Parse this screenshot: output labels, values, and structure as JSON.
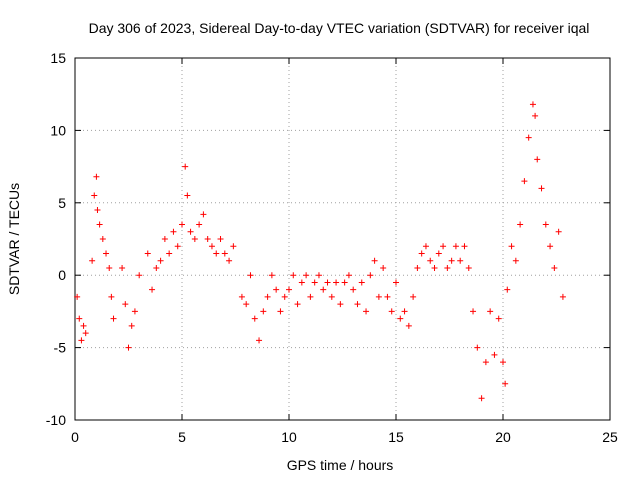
{
  "chart_data": {
    "type": "scatter",
    "title": "Day 306 of 2023, Sidereal Day-to-day VTEC variation (SDTVAR) for receiver iqal",
    "xlabel": "GPS time / hours",
    "ylabel": "SDTVAR / TECUs",
    "xlim": [
      0,
      25
    ],
    "ylim": [
      -10,
      15
    ],
    "xticks": [
      0,
      5,
      10,
      15,
      20,
      25
    ],
    "yticks": [
      -10,
      -5,
      0,
      5,
      10,
      15
    ],
    "xtick_labels": [
      "0",
      "5",
      "10",
      "15",
      "20",
      "25"
    ],
    "ytick_labels": [
      "-10",
      "-5",
      "0",
      "5",
      "10",
      "15"
    ],
    "grid": true,
    "marker": "+",
    "series": [
      {
        "name": "SDTVAR",
        "color": "#ff0000",
        "x": [
          0.1,
          0.2,
          0.3,
          0.4,
          0.5,
          0.8,
          0.9,
          1.0,
          1.05,
          1.15,
          1.3,
          1.45,
          1.6,
          1.7,
          1.8,
          2.2,
          2.35,
          2.5,
          2.65,
          2.8,
          3.0,
          3.4,
          3.6,
          3.8,
          4.0,
          4.2,
          4.4,
          4.6,
          4.8,
          5.0,
          5.15,
          5.25,
          5.4,
          5.6,
          5.8,
          6.0,
          6.2,
          6.4,
          6.6,
          6.8,
          7.0,
          7.2,
          7.4,
          7.8,
          8.0,
          8.2,
          8.4,
          8.6,
          8.8,
          9.0,
          9.2,
          9.4,
          9.6,
          9.8,
          10.0,
          10.2,
          10.4,
          10.6,
          10.8,
          11.0,
          11.2,
          11.4,
          11.6,
          11.8,
          12.0,
          12.2,
          12.4,
          12.6,
          12.8,
          13.0,
          13.2,
          13.4,
          13.6,
          13.8,
          14.0,
          14.2,
          14.4,
          14.6,
          14.8,
          15.0,
          15.2,
          15.4,
          15.6,
          15.8,
          16.0,
          16.2,
          16.4,
          16.6,
          16.8,
          17.0,
          17.2,
          17.4,
          17.6,
          17.8,
          18.0,
          18.2,
          18.4,
          18.6,
          18.8,
          19.0,
          19.2,
          19.4,
          19.6,
          19.8,
          20.0,
          20.1,
          20.2,
          20.4,
          20.6,
          20.8,
          21.0,
          21.2,
          21.4,
          21.5,
          21.6,
          21.8,
          22.0,
          22.2,
          22.4,
          22.6,
          22.8
        ],
        "y": [
          -1.5,
          -3.0,
          -4.5,
          -3.5,
          -4.0,
          1.0,
          5.5,
          6.8,
          4.5,
          3.5,
          2.5,
          1.5,
          0.5,
          -1.5,
          -3.0,
          0.5,
          -2.0,
          -5.0,
          -3.5,
          -2.5,
          0.0,
          1.5,
          -1.0,
          0.5,
          1.0,
          2.5,
          1.5,
          3.0,
          2.0,
          3.5,
          7.5,
          5.5,
          3.0,
          2.5,
          3.5,
          4.2,
          2.5,
          2.0,
          1.5,
          2.5,
          1.5,
          1.0,
          2.0,
          -1.5,
          -2.0,
          0.0,
          -3.0,
          -4.5,
          -2.5,
          -1.5,
          0.0,
          -1.0,
          -2.5,
          -1.5,
          -1.0,
          0.0,
          -2.0,
          -0.5,
          0.0,
          -1.5,
          -0.5,
          0.0,
          -1.0,
          -0.5,
          -1.5,
          -0.5,
          -2.0,
          -0.5,
          0.0,
          -1.0,
          -2.0,
          -0.5,
          -2.5,
          0.0,
          1.0,
          -1.5,
          0.5,
          -1.5,
          -2.5,
          -0.5,
          -3.0,
          -2.5,
          -3.5,
          -1.5,
          0.5,
          1.5,
          2.0,
          1.0,
          0.5,
          1.5,
          2.0,
          0.5,
          1.0,
          2.0,
          1.0,
          2.0,
          0.5,
          -2.5,
          -5.0,
          -8.5,
          -6.0,
          -2.5,
          -5.5,
          -3.0,
          -6.0,
          -7.5,
          -1.0,
          2.0,
          1.0,
          3.5,
          6.5,
          9.5,
          11.8,
          11.0,
          8.0,
          6.0,
          3.5,
          2.0,
          0.5,
          3.0,
          -1.5
        ]
      }
    ]
  }
}
